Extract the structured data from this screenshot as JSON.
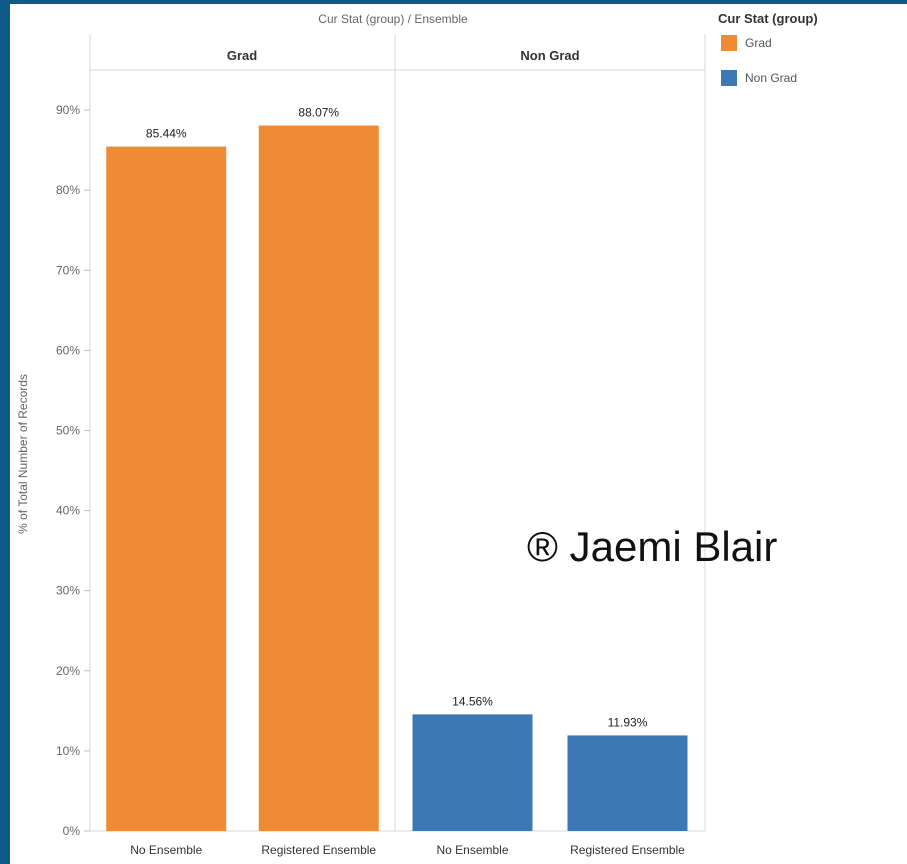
{
  "header": {
    "title": "Cur Stat (group)  /  Ensemble"
  },
  "legend": {
    "title": "Cur Stat (group)",
    "items": [
      {
        "label": "Grad",
        "color": "#ef8a35"
      },
      {
        "label": "Non Grad",
        "color": "#3b78b5"
      }
    ]
  },
  "watermark": "® Jaemi Blair",
  "chart_data": {
    "type": "bar",
    "ylabel": "% of Total Number of Records",
    "ylim": [
      0,
      95
    ],
    "yticks": [
      0,
      10,
      20,
      30,
      40,
      50,
      60,
      70,
      80,
      90
    ],
    "ytick_labels": [
      "0%",
      "10%",
      "20%",
      "30%",
      "40%",
      "50%",
      "60%",
      "70%",
      "80%",
      "90%"
    ],
    "panels": [
      {
        "name": "Grad",
        "color": "#ef8a35",
        "categories": [
          "No Ensemble",
          "Registered Ensemble"
        ],
        "values": [
          85.44,
          88.07
        ],
        "labels": [
          "85.44%",
          "88.07%"
        ]
      },
      {
        "name": "Non Grad",
        "color": "#3b78b5",
        "categories": [
          "No Ensemble",
          "Registered Ensemble"
        ],
        "values": [
          14.56,
          11.93
        ],
        "labels": [
          "14.56%",
          "11.93%"
        ]
      }
    ]
  }
}
